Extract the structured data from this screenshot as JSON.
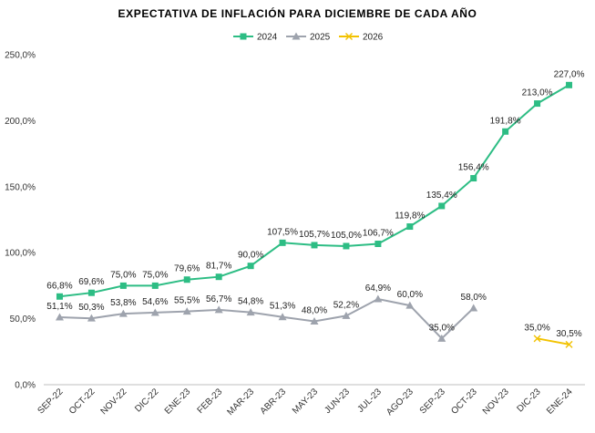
{
  "chart_data": {
    "type": "line",
    "title": "EXPECTATIVA DE INFLACIÓN PARA DICIEMBRE DE CADA AÑO",
    "xlabel": "",
    "ylabel": "",
    "ylim": [
      0,
      250
    ],
    "yticks": [
      "0,0%",
      "50,0%",
      "100,0%",
      "150,0%",
      "200,0%",
      "250,0%"
    ],
    "grid": false,
    "legend_position": "top-center",
    "categories": [
      "SEP-22",
      "OCT-22",
      "NOV-22",
      "DIC-22",
      "ENE-23",
      "FEB-23",
      "MAR-23",
      "ABR-23",
      "MAY-23",
      "JUN-23",
      "JUL-23",
      "AGO-23",
      "SEP-23",
      "OCT-23",
      "NOV-23",
      "DIC-23",
      "ENE-24"
    ],
    "series": [
      {
        "name": "2024",
        "color": "#2dbd84",
        "marker": "square",
        "values": [
          66.8,
          69.6,
          75.0,
          75.0,
          79.6,
          81.7,
          90.0,
          107.5,
          105.7,
          105.0,
          106.7,
          119.8,
          135.4,
          156.4,
          191.8,
          213.0,
          227.0
        ],
        "labels": [
          "66,8%",
          "69,6%",
          "75,0%",
          "75,0%",
          "79,6%",
          "81,7%",
          "90,0%",
          "107,5%",
          "105,7%",
          "105,0%",
          "106,7%",
          "119,8%",
          "135,4%",
          "156,4%",
          "191,8%",
          "213,0%",
          "227,0%"
        ]
      },
      {
        "name": "2025",
        "color": "#9ea3ad",
        "marker": "triangle",
        "values": [
          51.1,
          50.3,
          53.8,
          54.6,
          55.5,
          56.7,
          54.8,
          51.3,
          48.0,
          52.2,
          64.9,
          60.0,
          35.0,
          58.0,
          null,
          null,
          null
        ],
        "labels": [
          "51,1%",
          "50,3%",
          "53,8%",
          "54,6%",
          "55,5%",
          "56,7%",
          "54,8%",
          "51,3%",
          "48,0%",
          "52,2%",
          "64,9%",
          "60,0%",
          "35,0%",
          "58,0%",
          null,
          null,
          null
        ]
      },
      {
        "name": "2026",
        "color": "#f2c200",
        "marker": "x",
        "values": [
          null,
          null,
          null,
          null,
          null,
          null,
          null,
          null,
          null,
          null,
          null,
          null,
          null,
          null,
          null,
          35.0,
          30.5
        ],
        "labels": [
          null,
          null,
          null,
          null,
          null,
          null,
          null,
          null,
          null,
          null,
          null,
          null,
          null,
          null,
          null,
          "35,0%",
          "30,5%"
        ]
      }
    ]
  }
}
